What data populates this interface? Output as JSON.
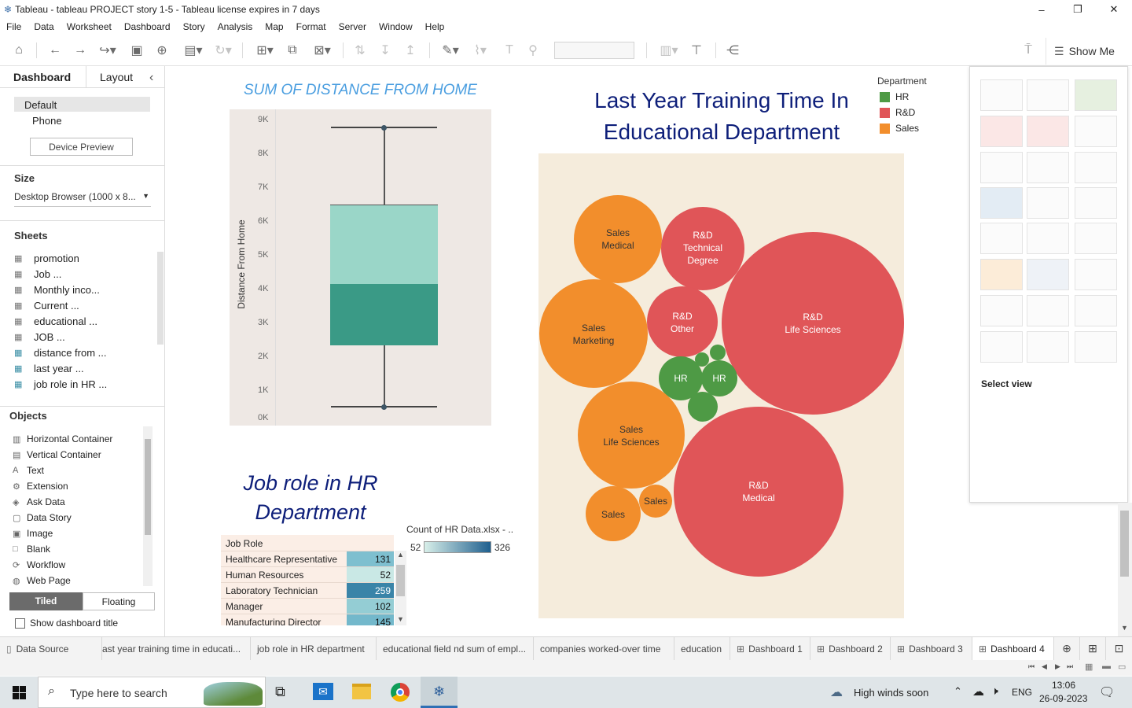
{
  "window": {
    "title": "Tableau - tableau PROJECT story 1-5 - Tableau license expires in 7 days",
    "minimize": "–",
    "maximize": "❐",
    "close": "✕"
  },
  "menu": [
    "File",
    "Data",
    "Worksheet",
    "Dashboard",
    "Story",
    "Analysis",
    "Map",
    "Format",
    "Server",
    "Window",
    "Help"
  ],
  "toolbar": {
    "show_me": "Show Me"
  },
  "left": {
    "tab_dashboard": "Dashboard",
    "tab_layout": "Layout",
    "collapse": "‹",
    "device_default": "Default",
    "device_phone": "Phone",
    "device_preview": "Device Preview",
    "size_title": "Size",
    "size_value": "Desktop Browser (1000 x 8...",
    "sheets_title": "Sheets",
    "sheets": [
      "promotion",
      "Job ...",
      "Monthly inco...",
      "Current ...",
      "educational ...",
      "JOB ...",
      "distance from ...",
      "last year ...",
      "job role in HR ..."
    ],
    "objects_title": "Objects",
    "objects": [
      "Horizontal Container",
      "Vertical Container",
      "Text",
      "Extension",
      "Ask Data",
      "Data Story",
      "Image",
      "Blank",
      "Workflow",
      "Web Page"
    ],
    "tiled": "Tiled",
    "floating": "Floating",
    "show_title": "Show dashboard title"
  },
  "boxplot": {
    "title": "SUM OF DISTANCE FROM HOME",
    "ylabel": "Distance From Home",
    "ticks": [
      "9K",
      "8K",
      "7K",
      "6K",
      "5K",
      "4K",
      "3K",
      "2K",
      "1K",
      "0K"
    ]
  },
  "bubble": {
    "title_line1": "Last Year Training Time In",
    "title_line2": "Educational Department",
    "legend_title": "Department",
    "legend": [
      {
        "name": "HR",
        "color": "#4e9a45"
      },
      {
        "name": "R&D",
        "color": "#e05558"
      },
      {
        "name": "Sales",
        "color": "#f28e2c"
      }
    ],
    "bubbles": [
      {
        "dept": "Sales",
        "l1": "Sales",
        "l2": "Medical"
      },
      {
        "dept": "R&D",
        "l1": "R&D",
        "l2": "Technical",
        "l3": "Degree"
      },
      {
        "dept": "Sales",
        "l1": "Sales",
        "l2": "Marketing"
      },
      {
        "dept": "R&D",
        "l1": "R&D",
        "l2": "Other"
      },
      {
        "dept": "R&D",
        "l1": "R&D",
        "l2": "Life Sciences"
      },
      {
        "dept": "HR",
        "l1": "HR"
      },
      {
        "dept": "HR",
        "l1": "HR"
      },
      {
        "dept": "Sales",
        "l1": "Sales",
        "l2": "Life Sciences"
      },
      {
        "dept": "R&D",
        "l1": "R&D",
        "l2": "Medical"
      },
      {
        "dept": "Sales",
        "l1": "Sales"
      },
      {
        "dept": "Sales",
        "l1": "Sales"
      }
    ]
  },
  "jobrole": {
    "title_line1": "Job role in HR",
    "title_line2": "Department",
    "col_header": "Job Role",
    "rows": [
      {
        "role": "Healthcare Representative",
        "count": "131"
      },
      {
        "role": "Human Resources",
        "count": "52"
      },
      {
        "role": "Laboratory Technician",
        "count": "259"
      },
      {
        "role": "Manager",
        "count": "102"
      },
      {
        "role": "Manufacturing Director",
        "count": "145"
      }
    ],
    "legend_title": "Count of HR Data.xlsx - ..",
    "legend_min": "52",
    "legend_max": "326"
  },
  "showme": {
    "select_view": "Select view"
  },
  "sheet_tabs": [
    "Data Source",
    "ast year training time in educati...",
    "job role in HR department",
    "educational field nd sum of empl...",
    "companies worked-over time",
    "education",
    "Dashboard 1",
    "Dashboard 2",
    "Dashboard 3",
    "Dashboard 4"
  ],
  "taskbar": {
    "search": "Type here to search",
    "weather": "High winds soon",
    "lang": "ENG",
    "time": "13:06",
    "date": "26-09-2023"
  }
}
